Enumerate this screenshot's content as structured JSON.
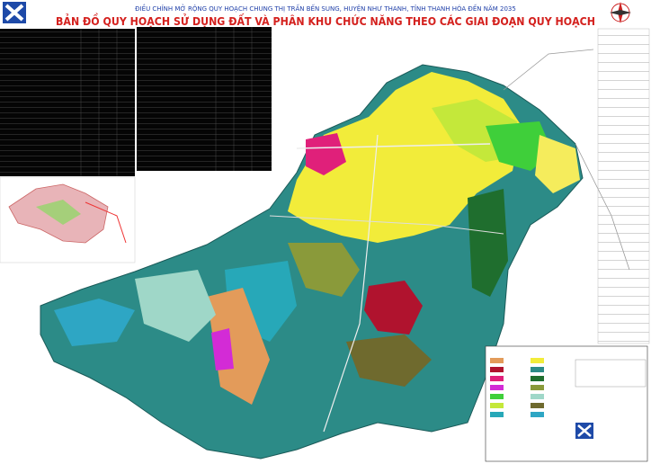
{
  "header": {
    "subtitle": "ĐIỀU CHỈNH MỞ RỘNG QUY HOẠCH CHUNG THỊ TRẤN BẾN SUNG, HUYỆN NHƯ THANH, TỈNH THANH HÓA ĐẾN NĂM 2035",
    "title": "BẢN ĐỒ QUY HOẠCH SỬ DỤNG ĐẤT VÀ PHÂN KHU CHỨC NĂNG THEO CÁC GIAI ĐOẠN QUY HOẠCH"
  }
}
